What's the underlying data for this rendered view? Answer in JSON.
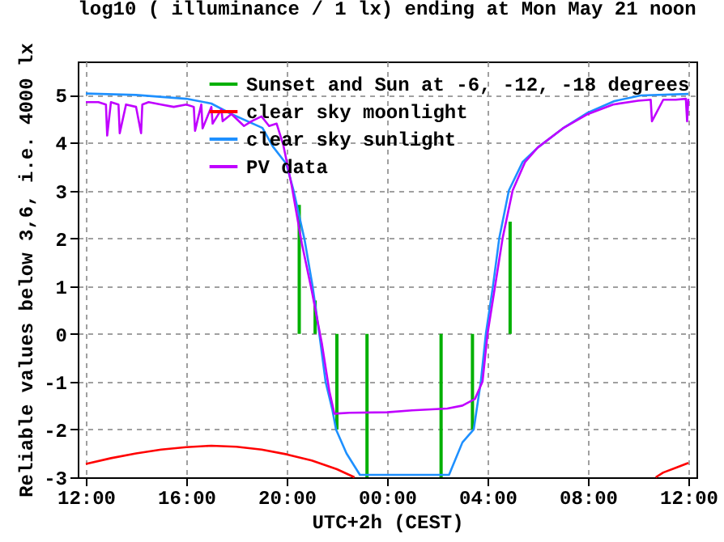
{
  "chart_data": {
    "type": "line",
    "title": "log10 ( illuminance / 1 lx) ending at Mon May 21 noon",
    "xlabel": "UTC+2h (CEST)",
    "ylabel": "Reliable values below 3,6, i.e. 4000 lx",
    "xlim": [
      "--05-20T12:00",
      "--05-21T12:00"
    ],
    "xticks": [
      {
        "value": "--05-20T12:00",
        "label": "12:00"
      },
      {
        "value": "--05-20T16:00",
        "label": "16:00"
      },
      {
        "value": "--05-20T20:00",
        "label": "20:00"
      },
      {
        "value": "--05-21T00:00",
        "label": "00:00"
      },
      {
        "value": "--05-21T04:00",
        "label": "04:00"
      },
      {
        "value": "--05-21T08:00",
        "label": "08:00"
      },
      {
        "value": "--05-21T12:00",
        "label": "12:00"
      }
    ],
    "ylim": [
      -3,
      5.7
    ],
    "yticks": [
      -3,
      -2,
      -1,
      0,
      1,
      2,
      3,
      4,
      5
    ],
    "grid": true,
    "legend": "top right",
    "line_style": "solid",
    "marker": "none",
    "series": [
      {
        "name": "Sunset and Sun at -6, -12, -18 degrees",
        "type": "bar",
        "color": "#00b000",
        "x": [
          "--05-20T20:30",
          "--05-20T21:08",
          "--05-20T22:00",
          "--05-20T23:12",
          "--05-21T02:09",
          "--05-21T03:24",
          "--05-21T04:54"
        ],
        "values": [
          2.7,
          0.7,
          -2.0,
          -3,
          -3,
          -2.0,
          2.35
        ]
      },
      {
        "name": "clear sky moonlight",
        "color": "#ff0000",
        "x": [
          "--05-20T12:00",
          "--05-20T13:00",
          "--05-20T14:00",
          "--05-20T15:00",
          "--05-20T16:00",
          "--05-20T17:00",
          "--05-20T18:00",
          "--05-20T19:00",
          "--05-20T20:00",
          "--05-20T21:00",
          "--05-20T22:00",
          "--05-20T22:42",
          "--05-21T06:00",
          "--05-21T10:42",
          "--05-21T11:00",
          "--05-21T11:30",
          "--05-21T12:00"
        ],
        "values": [
          -2.72,
          -2.6,
          -2.5,
          -2.42,
          -2.37,
          -2.34,
          -2.36,
          -2.42,
          -2.52,
          -2.65,
          -2.83,
          -3.0,
          null,
          -3.0,
          -2.9,
          -2.8,
          -2.7
        ]
      },
      {
        "name": "clear sky sunlight",
        "color": "#1e90ff",
        "x": [
          "--05-20T12:00",
          "--05-20T14:00",
          "--05-20T16:00",
          "--05-20T17:00",
          "--05-20T17:48",
          "--05-20T19:02",
          "--05-20T19:27",
          "--05-20T19:59",
          "--05-20T20:17",
          "--05-20T20:43",
          "--05-20T21:02",
          "--05-20T21:18",
          "--05-20T21:33",
          "--05-20T21:49",
          "--05-20T21:58",
          "--05-20T22:23",
          "--05-20T22:55",
          "--05-21T02:28",
          "--05-21T03:00",
          "--05-21T03:27",
          "--05-21T03:44",
          "--05-21T03:56",
          "--05-21T04:13",
          "--05-21T04:28",
          "--05-21T04:51",
          "--05-21T05:24",
          "--05-21T06:00",
          "--05-21T07:00",
          "--05-21T08:00",
          "--05-21T09:03",
          "--05-21T10:06",
          "--05-21T12:00"
        ],
        "values": [
          5.03,
          5.0,
          4.92,
          4.82,
          4.6,
          4.31,
          3.92,
          3.56,
          2.98,
          1.96,
          0.99,
          0,
          -1.0,
          -1.58,
          -2.0,
          -2.5,
          -2.95,
          -2.95,
          -2.27,
          -2.0,
          -1.0,
          0,
          1,
          2,
          3,
          3.6,
          3.9,
          4.3,
          4.63,
          4.87,
          4.99,
          5.02
        ]
      },
      {
        "name": "PV data",
        "color": "#c000ff",
        "x": [
          "--05-20T12:00",
          "--05-20T12:30",
          "--05-20T12:48",
          "--05-20T12:51",
          "--05-20T13:00",
          "--05-20T13:18",
          "--05-20T13:21",
          "--05-20T13:36",
          "--05-20T14:00",
          "--05-20T14:12",
          "--05-20T14:15",
          "--05-20T14:30",
          "--05-20T15:00",
          "--05-20T15:30",
          "--05-20T16:00",
          "--05-20T16:18",
          "--05-20T16:21",
          "--05-20T16:36",
          "--05-20T16:39",
          "--05-20T17:00",
          "--05-20T17:03",
          "--05-20T17:24",
          "--05-20T17:27",
          "--05-20T17:48",
          "--05-20T18:18",
          "--05-20T18:36",
          "--05-20T19:00",
          "--05-20T19:18",
          "--05-20T19:36",
          "--05-20T19:52",
          "--05-20T20:12",
          "--05-20T20:36",
          "--05-20T21:00",
          "--05-20T21:24",
          "--05-20T21:42",
          "--05-20T21:54",
          "--05-20T22:30",
          "--05-21T00:00",
          "--05-21T01:00",
          "--05-21T02:24",
          "--05-21T03:00",
          "--05-21T03:30",
          "--05-21T03:48",
          "--05-21T04:00",
          "--05-21T04:18",
          "--05-21T04:36",
          "--05-21T05:00",
          "--05-21T05:30",
          "--05-21T06:00",
          "--05-21T07:00",
          "--05-21T08:00",
          "--05-21T09:00",
          "--05-21T10:00",
          "--05-21T10:30",
          "--05-21T10:33",
          "--05-21T11:00",
          "--05-21T11:30",
          "--05-21T11:54",
          "--05-21T11:57",
          "--05-21T12:00"
        ],
        "values": [
          4.85,
          4.85,
          4.8,
          4.15,
          4.85,
          4.8,
          4.2,
          4.8,
          4.75,
          4.2,
          4.8,
          4.85,
          4.8,
          4.75,
          4.8,
          4.75,
          4.25,
          4.8,
          4.3,
          4.75,
          4.4,
          4.7,
          4.45,
          4.6,
          4.35,
          4.45,
          4.55,
          4.35,
          4.4,
          3.95,
          3.1,
          1.9,
          0.9,
          -0.2,
          -1.2,
          -1.67,
          -1.65,
          -1.64,
          -1.6,
          -1.56,
          -1.5,
          -1.36,
          -1.0,
          0,
          1,
          2,
          3.0,
          3.6,
          3.9,
          4.3,
          4.6,
          4.8,
          4.88,
          4.9,
          4.45,
          4.9,
          4.9,
          4.92,
          4.45,
          4.92
        ]
      }
    ]
  }
}
